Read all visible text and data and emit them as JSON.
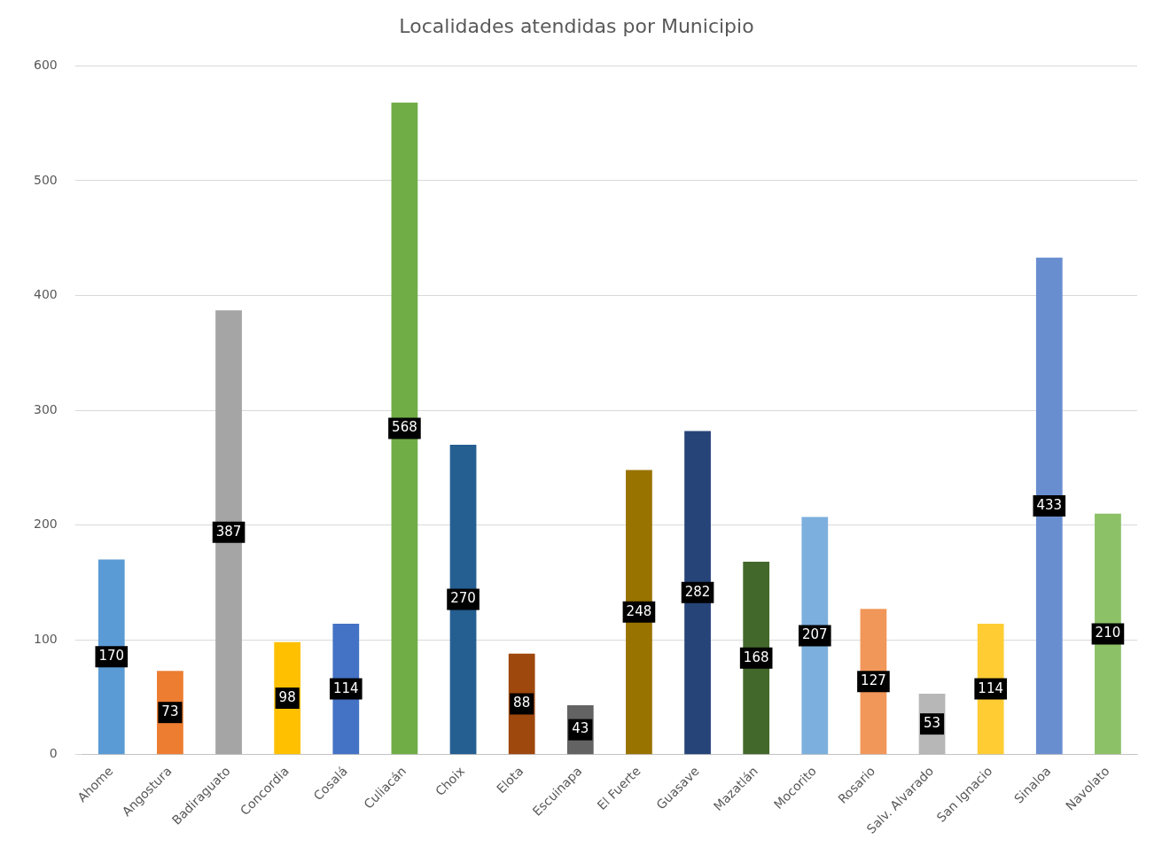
{
  "chart_data": {
    "type": "bar",
    "title": "Localidades atendidas por Municipio",
    "categories": [
      "Ahome",
      "Angostura",
      "Badiraguato",
      "Concordia",
      "Cosalá",
      "Culiacán",
      "Choix",
      "Elota",
      "Escuinapa",
      "El Fuerte",
      "Guasave",
      "Mazatlán",
      "Mocorito",
      "Rosario",
      "Salv. Alvarado",
      "San Ignacio",
      "Sinaloa",
      "Navolato"
    ],
    "values": [
      170,
      73,
      387,
      98,
      114,
      568,
      270,
      88,
      43,
      248,
      282,
      168,
      207,
      127,
      53,
      114,
      433,
      210
    ],
    "colors": [
      "#5b9bd5",
      "#ed7d31",
      "#a5a5a5",
      "#ffc000",
      "#4472c4",
      "#70ad47",
      "#255e91",
      "#9e480e",
      "#636363",
      "#997300",
      "#264478",
      "#43682b",
      "#7cafdd",
      "#f1975a",
      "#b7b7b7",
      "#ffcd33",
      "#698ed0",
      "#8cc168"
    ],
    "ylim": [
      0,
      600
    ],
    "yticks": [
      0,
      100,
      200,
      300,
      400,
      500,
      600
    ],
    "grid": "y",
    "legend": false,
    "data_labels": true
  }
}
